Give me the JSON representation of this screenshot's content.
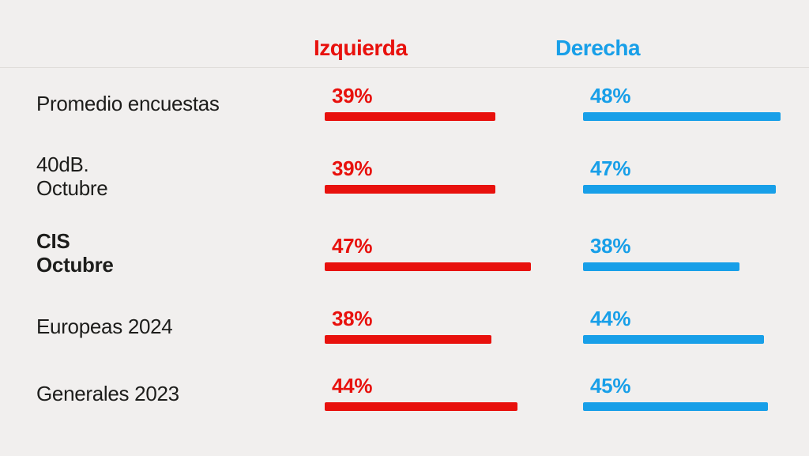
{
  "header": {
    "left_label": "Izquierda",
    "right_label": "Derecha"
  },
  "colors": {
    "left_accent": "#e8110d",
    "right_accent": "#189fe8",
    "background": "#f1efee",
    "divider": "#e0ddda",
    "text": "#1d1d1b"
  },
  "chart_data": {
    "type": "bar",
    "orientation": "horizontal",
    "title": "",
    "categories": [
      "Promedio encuestas",
      "40dB. Octubre",
      "CIS Octubre",
      "Europeas 2024",
      "Generales 2023"
    ],
    "series": [
      {
        "name": "Izquierda",
        "color": "#e8110d",
        "values": [
          39,
          39,
          47,
          38,
          44
        ]
      },
      {
        "name": "Derecha",
        "color": "#189fe8",
        "values": [
          48,
          47,
          38,
          44,
          45
        ]
      }
    ],
    "value_suffix": "%",
    "xlim": [
      0,
      50
    ],
    "grid": false,
    "legend_position": "top",
    "highlighted_category": "CIS Octubre"
  },
  "rows": [
    {
      "label": "Promedio encuestas",
      "bold": false,
      "left_value": "39%",
      "right_value": "48%"
    },
    {
      "label": "40dB.\nOctubre",
      "bold": false,
      "left_value": "39%",
      "right_value": "47%"
    },
    {
      "label": "CIS\nOctubre",
      "bold": true,
      "left_value": "47%",
      "right_value": "38%"
    },
    {
      "label": "Europeas 2024",
      "bold": false,
      "left_value": "38%",
      "right_value": "44%"
    },
    {
      "label": "Generales 2023",
      "bold": false,
      "left_value": "44%",
      "right_value": "45%"
    }
  ]
}
